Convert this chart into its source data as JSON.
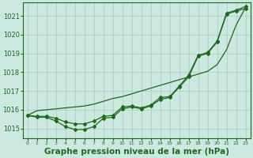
{
  "x": [
    0,
    1,
    2,
    3,
    4,
    5,
    6,
    7,
    8,
    9,
    10,
    11,
    12,
    13,
    14,
    15,
    16,
    17,
    18,
    19,
    20,
    21,
    22,
    23
  ],
  "y_zigzag": [
    1015.7,
    1015.6,
    1015.6,
    1015.4,
    1015.1,
    1014.95,
    1014.95,
    1015.1,
    1015.55,
    1015.6,
    1016.05,
    1016.15,
    1016.05,
    1016.2,
    1016.55,
    1016.65,
    1017.2,
    1017.75,
    1018.85,
    1019.0,
    1019.6,
    1021.1,
    1021.25,
    1021.4
  ],
  "y_smooth": [
    1015.7,
    1015.65,
    1015.65,
    1015.55,
    1015.35,
    1015.25,
    1015.25,
    1015.4,
    1015.65,
    1015.7,
    1016.15,
    1016.2,
    1016.1,
    1016.25,
    1016.65,
    1016.7,
    1017.25,
    1017.85,
    1018.9,
    1019.05,
    1019.65,
    1021.15,
    1021.3,
    1021.5
  ],
  "y_straight": [
    1015.7,
    1015.95,
    1016.0,
    1016.05,
    1016.1,
    1016.15,
    1016.2,
    1016.3,
    1016.45,
    1016.6,
    1016.7,
    1016.85,
    1017.0,
    1017.15,
    1017.3,
    1017.45,
    1017.6,
    1017.75,
    1017.9,
    1018.05,
    1018.4,
    1019.2,
    1020.5,
    1021.45
  ],
  "ylim_min": 1014.5,
  "ylim_max": 1021.7,
  "yticks": [
    1015,
    1016,
    1017,
    1018,
    1019,
    1020,
    1021
  ],
  "ytick_top": "1021",
  "line_color": "#1a6b1a",
  "bg_color": "#cce8e0",
  "grid_color": "#aaccbb",
  "xlabel": "Graphe pression niveau de la mer (hPa)",
  "marker": "D",
  "marker_size": 2.0,
  "linewidth": 0.9
}
